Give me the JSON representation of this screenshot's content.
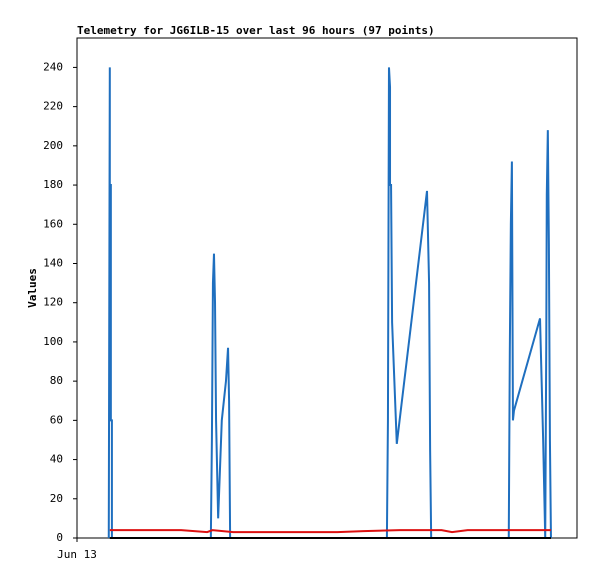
{
  "chart_data": {
    "type": "line",
    "title": "Telemetry for JG6ILB-15 over last 96 hours (97 points)",
    "y_label": "Values",
    "xlim": [
      0,
      96
    ],
    "xticks": [
      {
        "value": 0,
        "label": "Jun 13"
      }
    ],
    "ylim": [
      0,
      255
    ],
    "yticks": [
      0,
      20,
      40,
      60,
      80,
      100,
      120,
      140,
      160,
      180,
      200,
      220,
      240
    ],
    "series": [
      {
        "color": "#1f6fbf",
        "x": [
          6.1,
          6.3,
          6.3,
          6.5,
          6.5,
          6.7,
          6.7,
          25.7,
          25.9,
          26.1,
          26.3,
          26.5,
          26.7,
          27.1,
          27.8,
          28.6,
          29.0,
          29.2,
          29.4,
          59.5,
          59.7,
          59.9,
          60.1,
          60.1,
          60.3,
          60.5,
          61.4,
          67.2,
          67.6,
          67.8,
          68.0,
          82.9,
          83.1,
          83.3,
          83.5,
          83.7,
          83.9,
          88.9,
          89.5,
          89.9,
          90.1,
          90.2,
          90.4,
          90.6,
          90.8,
          91.0
        ],
        "values": [
          0,
          240,
          180,
          180,
          60,
          60,
          0,
          0,
          50,
          130,
          145,
          120,
          60,
          10,
          60,
          80,
          97,
          70,
          0,
          0,
          60,
          240,
          230,
          180,
          180,
          110,
          48,
          177,
          130,
          45,
          0,
          0,
          95,
          160,
          192,
          60,
          65,
          112,
          50,
          0,
          100,
          175,
          208,
          150,
          50,
          0
        ]
      },
      {
        "color": "#dd1111",
        "x": [
          6.3,
          20,
          25,
          26,
          30,
          50,
          55,
          62,
          70,
          72,
          75,
          91
        ],
        "values": [
          4,
          4,
          3,
          4,
          3,
          3,
          3.5,
          4,
          4,
          3,
          4,
          4
        ]
      },
      {
        "color": "#000000",
        "x": [
          6.3,
          91
        ],
        "values": [
          0,
          0
        ]
      }
    ]
  }
}
